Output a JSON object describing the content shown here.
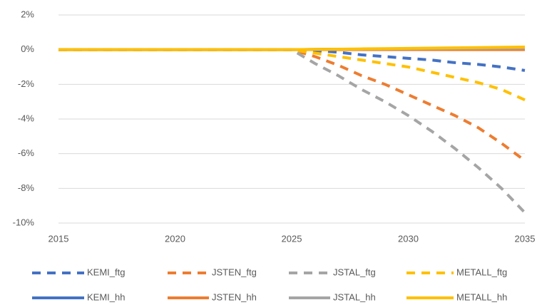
{
  "chart_data": {
    "type": "line",
    "x": [
      2015,
      2016,
      2017,
      2018,
      2019,
      2020,
      2021,
      2022,
      2023,
      2024,
      2025,
      2026,
      2027,
      2028,
      2029,
      2030,
      2031,
      2032,
      2033,
      2034,
      2035
    ],
    "xlim": [
      2015,
      2035
    ],
    "xticks": [
      2015,
      2020,
      2025,
      2030,
      2035
    ],
    "ylim": [
      -10,
      2
    ],
    "yticks": [
      {
        "value": -10,
        "label": "-10%"
      },
      {
        "value": -8,
        "label": "-8%"
      },
      {
        "value": -6,
        "label": "-6%"
      },
      {
        "value": -4,
        "label": "-4%"
      },
      {
        "value": -2,
        "label": "-2%"
      },
      {
        "value": 0,
        "label": "0%"
      },
      {
        "value": 2,
        "label": "2%"
      }
    ],
    "grid": true,
    "legend": "bottom",
    "series": [
      {
        "name": "KEMI_ftg",
        "color": "#4472c4",
        "style": "dashed",
        "values": [
          0,
          0,
          0,
          0,
          0,
          0,
          0,
          0,
          0,
          0,
          0,
          -0.05,
          -0.15,
          -0.3,
          -0.4,
          -0.5,
          -0.6,
          -0.75,
          -0.85,
          -1.0,
          -1.2
        ]
      },
      {
        "name": "JSTEN_ftg",
        "color": "#ed7d31",
        "style": "dashed",
        "values": [
          0,
          0,
          0,
          0,
          0,
          0,
          0,
          0,
          0,
          0,
          0,
          -0.4,
          -0.9,
          -1.5,
          -2.0,
          -2.6,
          -3.2,
          -3.8,
          -4.5,
          -5.4,
          -6.4
        ]
      },
      {
        "name": "JSTAL_ftg",
        "color": "#a5a5a5",
        "style": "dashed",
        "values": [
          0,
          0,
          0,
          0,
          0,
          0,
          0,
          0,
          0,
          0,
          0,
          -0.8,
          -1.5,
          -2.3,
          -3.0,
          -3.8,
          -4.7,
          -5.7,
          -6.8,
          -8.0,
          -9.4
        ]
      },
      {
        "name": "METALL_ftg",
        "color": "#ffc000",
        "style": "dashed",
        "values": [
          0,
          0,
          0,
          0,
          0,
          0,
          0,
          0,
          0,
          0,
          0,
          -0.2,
          -0.4,
          -0.6,
          -0.8,
          -1.0,
          -1.3,
          -1.6,
          -1.9,
          -2.3,
          -2.9
        ]
      },
      {
        "name": "KEMI_hh",
        "color": "#4472c4",
        "style": "solid",
        "values": [
          0,
          0,
          0,
          0,
          0,
          0,
          0,
          0,
          0,
          0,
          0,
          0.01,
          0.02,
          0.03,
          0.04,
          0.05,
          0.06,
          0.07,
          0.08,
          0.09,
          0.1
        ]
      },
      {
        "name": "JSTEN_hh",
        "color": "#ed7d31",
        "style": "solid",
        "values": [
          0,
          0,
          0,
          0,
          0,
          0,
          0,
          0,
          0,
          0,
          0,
          0,
          0,
          0,
          0,
          0,
          0,
          0,
          0,
          0,
          0
        ]
      },
      {
        "name": "JSTAL_hh",
        "color": "#a5a5a5",
        "style": "solid",
        "values": [
          0,
          0,
          0,
          0,
          0,
          0,
          0,
          0,
          0,
          0,
          0,
          0.01,
          0.02,
          0.03,
          0.04,
          0.05,
          0.06,
          0.07,
          0.08,
          0.09,
          0.1
        ]
      },
      {
        "name": "METALL_hh",
        "color": "#ffc000",
        "style": "solid",
        "values": [
          0,
          0,
          0,
          0,
          0,
          0,
          0,
          0,
          0,
          0,
          0,
          0.015,
          0.03,
          0.045,
          0.06,
          0.075,
          0.09,
          0.105,
          0.12,
          0.135,
          0.15
        ]
      }
    ]
  }
}
